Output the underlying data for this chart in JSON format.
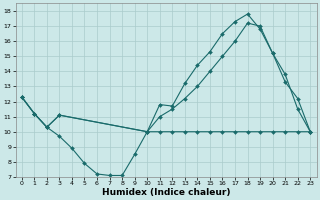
{
  "xlabel": "Humidex (Indice chaleur)",
  "bg_color": "#cce8e8",
  "grid_color": "#aacccc",
  "line_color": "#1a6b6b",
  "xlim": [
    -0.5,
    23.5
  ],
  "ylim": [
    7,
    18.5
  ],
  "yticks": [
    7,
    8,
    9,
    10,
    11,
    12,
    13,
    14,
    15,
    16,
    17,
    18
  ],
  "xticks": [
    0,
    1,
    2,
    3,
    4,
    5,
    6,
    7,
    8,
    9,
    10,
    11,
    12,
    13,
    14,
    15,
    16,
    17,
    18,
    19,
    20,
    21,
    22,
    23
  ],
  "line1_x": [
    0,
    1,
    2,
    3,
    4,
    5,
    6,
    7,
    8,
    9,
    10,
    11,
    12,
    13,
    14,
    15,
    16,
    17,
    18,
    19,
    20,
    21,
    22,
    23
  ],
  "line1_y": [
    12.3,
    11.2,
    10.3,
    9.7,
    8.9,
    7.9,
    7.2,
    7.1,
    7.1,
    8.5,
    10.0,
    10.0,
    10.0,
    10.0,
    10.0,
    10.0,
    10.0,
    10.0,
    10.0,
    10.0,
    10.0,
    10.0,
    10.0,
    10.0
  ],
  "line2_x": [
    0,
    1,
    2,
    3,
    10,
    11,
    12,
    13,
    14,
    15,
    16,
    17,
    18,
    19,
    20,
    21,
    22,
    23
  ],
  "line2_y": [
    12.3,
    11.2,
    10.3,
    11.1,
    10.0,
    11.8,
    11.7,
    13.2,
    14.4,
    15.3,
    16.5,
    17.3,
    17.8,
    16.8,
    15.2,
    13.3,
    12.2,
    10.0
  ],
  "line3_x": [
    0,
    1,
    2,
    3,
    10,
    11,
    12,
    13,
    14,
    15,
    16,
    17,
    18,
    19,
    20,
    21,
    22,
    23
  ],
  "line3_y": [
    12.3,
    11.2,
    10.3,
    11.1,
    10.0,
    11.0,
    11.5,
    12.2,
    13.0,
    14.0,
    15.0,
    16.0,
    17.2,
    17.0,
    15.2,
    13.8,
    11.5,
    10.0
  ]
}
